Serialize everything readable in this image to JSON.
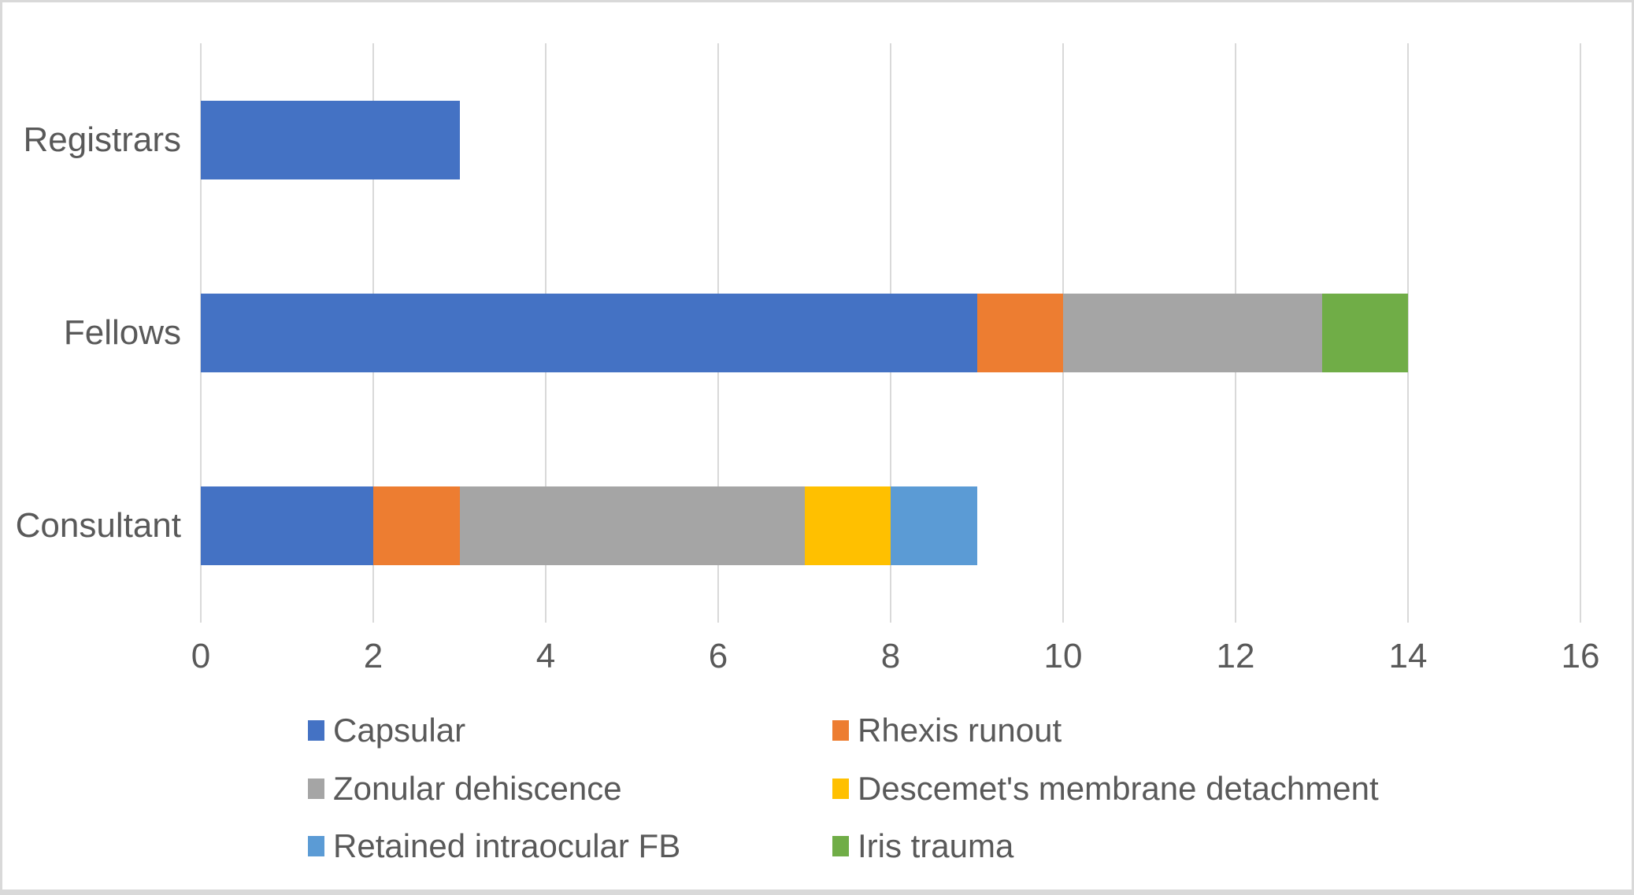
{
  "chart_data": {
    "type": "bar",
    "orientation": "horizontal",
    "stacked": true,
    "title": "",
    "xlabel": "",
    "ylabel": "",
    "categories": [
      "Registrars",
      "Fellows",
      "Consultant"
    ],
    "series": [
      {
        "name": "Capsular",
        "color": "#4472C4",
        "values": [
          3,
          9,
          2
        ]
      },
      {
        "name": "Rhexis runout",
        "color": "#ED7D31",
        "values": [
          0,
          1,
          1
        ]
      },
      {
        "name": "Zonular dehiscence",
        "color": "#A5A5A5",
        "values": [
          0,
          3,
          4
        ]
      },
      {
        "name": "Descemet's membrane detachment",
        "color": "#FFC000",
        "values": [
          0,
          0,
          1
        ]
      },
      {
        "name": "Retained intraocular FB",
        "color": "#5B9BD5",
        "values": [
          0,
          0,
          1
        ]
      },
      {
        "name": "Iris trauma",
        "color": "#70AD47",
        "values": [
          0,
          1,
          0
        ]
      }
    ],
    "totals": {
      "Registrars": 3,
      "Fellows": 14,
      "Consultant": 9
    },
    "xlim": [
      0,
      16
    ],
    "xticks": [
      "0",
      "2",
      "4",
      "6",
      "8",
      "10",
      "12",
      "14",
      "16"
    ],
    "grid": true,
    "legend_position": "bottom",
    "legend_columns": 2,
    "colors": {
      "gridline": "#D9D9D9",
      "axis_text": "#595959",
      "background": "#FFFFFF",
      "frame_border": "#D9D9D9"
    }
  }
}
